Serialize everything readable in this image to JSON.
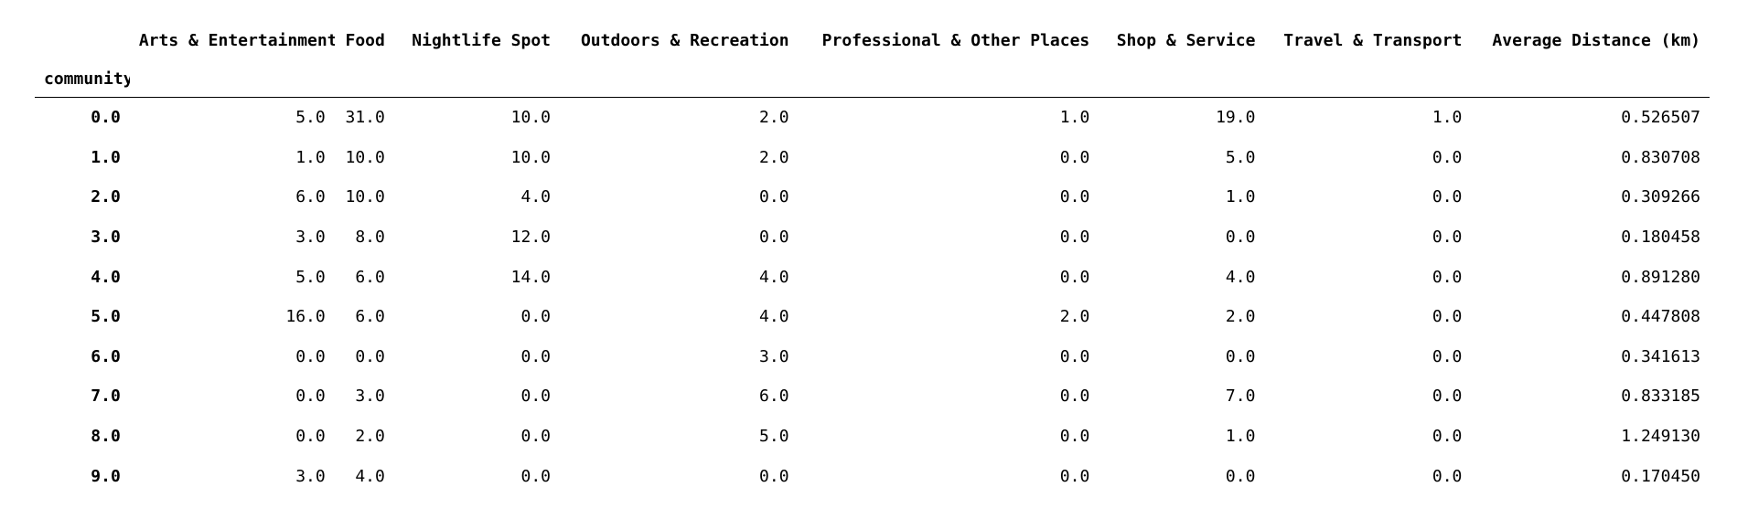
{
  "table": {
    "index_name": "community",
    "columns": [
      "Arts & Entertainment",
      "Food",
      "Nightlife Spot",
      "Outdoors & Recreation",
      "Professional & Other Places",
      "Shop & Service",
      "Travel & Transport",
      "Average Distance (km)"
    ],
    "rows": [
      {
        "index": "0.0",
        "values": [
          "5.0",
          "31.0",
          "10.0",
          "2.0",
          "1.0",
          "19.0",
          "1.0",
          "0.526507"
        ]
      },
      {
        "index": "1.0",
        "values": [
          "1.0",
          "10.0",
          "10.0",
          "2.0",
          "0.0",
          "5.0",
          "0.0",
          "0.830708"
        ]
      },
      {
        "index": "2.0",
        "values": [
          "6.0",
          "10.0",
          "4.0",
          "0.0",
          "0.0",
          "1.0",
          "0.0",
          "0.309266"
        ]
      },
      {
        "index": "3.0",
        "values": [
          "3.0",
          "8.0",
          "12.0",
          "0.0",
          "0.0",
          "0.0",
          "0.0",
          "0.180458"
        ]
      },
      {
        "index": "4.0",
        "values": [
          "5.0",
          "6.0",
          "14.0",
          "4.0",
          "0.0",
          "4.0",
          "0.0",
          "0.891280"
        ]
      },
      {
        "index": "5.0",
        "values": [
          "16.0",
          "6.0",
          "0.0",
          "4.0",
          "2.0",
          "2.0",
          "0.0",
          "0.447808"
        ]
      },
      {
        "index": "6.0",
        "values": [
          "0.0",
          "0.0",
          "0.0",
          "3.0",
          "0.0",
          "0.0",
          "0.0",
          "0.341613"
        ]
      },
      {
        "index": "7.0",
        "values": [
          "0.0",
          "3.0",
          "0.0",
          "6.0",
          "0.0",
          "7.0",
          "0.0",
          "0.833185"
        ]
      },
      {
        "index": "8.0",
        "values": [
          "0.0",
          "2.0",
          "0.0",
          "5.0",
          "0.0",
          "1.0",
          "0.0",
          "1.249130"
        ]
      },
      {
        "index": "9.0",
        "values": [
          "3.0",
          "4.0",
          "0.0",
          "0.0",
          "0.0",
          "0.0",
          "0.0",
          "0.170450"
        ]
      }
    ]
  }
}
